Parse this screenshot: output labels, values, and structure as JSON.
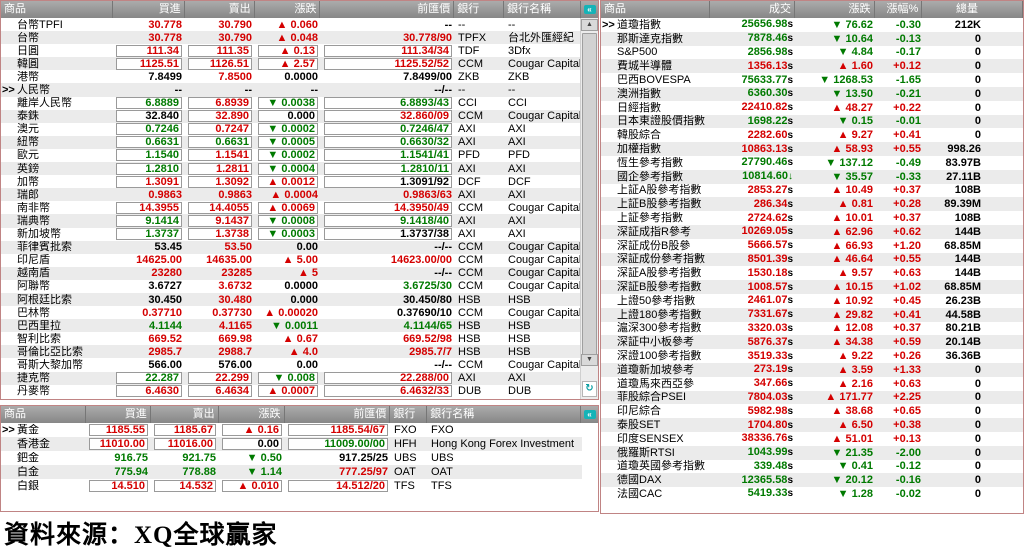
{
  "source_note": "資料來源：XQ全球贏家",
  "colors": {
    "up_red": "#d40000",
    "down_green": "#007a00",
    "flat_black": "#000000",
    "header_bg": "#979797",
    "row_alt": "#ebebeb",
    "panel_border": "#c08484",
    "link_teal": "#15b3b7"
  },
  "icons": {
    "panel_link_icon": "«",
    "scroll_up_icon": "▲",
    "scroll_down_icon": "▼",
    "refresh_icon": "↻",
    "up_arrow": "▲",
    "down_arrow": "▼"
  },
  "fx_panel": {
    "headers": {
      "product": "商品",
      "bid": "買進",
      "ask": "賣出",
      "change": "漲跌",
      "prev": "前匯價",
      "bank": "銀行",
      "bank_name": "銀行名稱"
    },
    "rows": [
      {
        "name": "台幣TPFI",
        "sel": false,
        "bid": "30.778",
        "bc": "r",
        "ask": "30.790",
        "ac": "r",
        "chg": "0.060",
        "dir": "up",
        "prev": "--",
        "pc": "k",
        "bank": "--",
        "bank_name": "--",
        "boxed": false
      },
      {
        "name": "台幣",
        "sel": false,
        "bid": "30.778",
        "bc": "r",
        "ask": "30.790",
        "ac": "r",
        "chg": "0.048",
        "dir": "up",
        "prev": "30.778/90",
        "pc": "r",
        "bank": "TPFX",
        "bank_name": "台北外匯經紀",
        "boxed": false
      },
      {
        "name": "日圓",
        "sel": false,
        "bid": "111.34",
        "bc": "r",
        "ask": "111.35",
        "ac": "r",
        "chg": "0.13",
        "dir": "up",
        "prev": "111.34/34",
        "pc": "r",
        "bank": "TDF",
        "bank_name": "3Dfx",
        "boxed": true
      },
      {
        "name": "韓圓",
        "sel": false,
        "bid": "1125.51",
        "bc": "r",
        "ask": "1126.51",
        "ac": "r",
        "chg": "2.57",
        "dir": "up",
        "prev": "1125.52/52",
        "pc": "r",
        "bank": "CCM",
        "bank_name": "Cougar Capital ...",
        "boxed": true
      },
      {
        "name": "港幣",
        "sel": false,
        "bid": "7.8499",
        "bc": "k",
        "ask": "7.8500",
        "ac": "r",
        "chg": "0.0000",
        "dir": "flat",
        "prev": "7.8499/00",
        "pc": "k",
        "bank": "ZKB",
        "bank_name": "ZKB",
        "boxed": false
      },
      {
        "name": "人民幣",
        "sel": true,
        "bid": "--",
        "bc": "k",
        "ask": "--",
        "ac": "k",
        "chg": "--",
        "dir": "flat",
        "prev": "--/--",
        "pc": "k",
        "bank": "--",
        "bank_name": "--",
        "boxed": false
      },
      {
        "name": "離岸人民幣",
        "sel": false,
        "bid": "6.8889",
        "bc": "g",
        "ask": "6.8939",
        "ac": "r",
        "chg": "0.0038",
        "dir": "down",
        "prev": "6.8893/43",
        "pc": "g",
        "bank": "CCI",
        "bank_name": "CCI",
        "boxed": true
      },
      {
        "name": "泰銖",
        "sel": false,
        "bid": "32.840",
        "bc": "k",
        "ask": "32.890",
        "ac": "r",
        "chg": "0.000",
        "dir": "flat",
        "prev": "32.860/09",
        "pc": "r",
        "bank": "CCM",
        "bank_name": "Cougar Capital ...",
        "boxed": true
      },
      {
        "name": "澳元",
        "sel": false,
        "bid": "0.7246",
        "bc": "g",
        "ask": "0.7247",
        "ac": "r",
        "chg": "0.0002",
        "dir": "down",
        "prev": "0.7246/47",
        "pc": "g",
        "bank": "AXI",
        "bank_name": "AXI",
        "boxed": true
      },
      {
        "name": "紐幣",
        "sel": false,
        "bid": "0.6631",
        "bc": "g",
        "ask": "0.6631",
        "ac": "g",
        "chg": "0.0005",
        "dir": "down",
        "prev": "0.6630/32",
        "pc": "g",
        "bank": "AXI",
        "bank_name": "AXI",
        "boxed": true
      },
      {
        "name": "歐元",
        "sel": false,
        "bid": "1.1540",
        "bc": "g",
        "ask": "1.1541",
        "ac": "r",
        "chg": "0.0002",
        "dir": "down",
        "prev": "1.1541/41",
        "pc": "g",
        "bank": "PFD",
        "bank_name": "PFD",
        "boxed": true
      },
      {
        "name": "英鎊",
        "sel": false,
        "bid": "1.2810",
        "bc": "g",
        "ask": "1.2811",
        "ac": "r",
        "chg": "0.0004",
        "dir": "down",
        "prev": "1.2810/11",
        "pc": "g",
        "bank": "AXI",
        "bank_name": "AXI",
        "boxed": true
      },
      {
        "name": "加幣",
        "sel": false,
        "bid": "1.3091",
        "bc": "r",
        "ask": "1.3092",
        "ac": "r",
        "chg": "0.0012",
        "dir": "up",
        "prev": "1.3091/92",
        "pc": "k",
        "bank": "DCF",
        "bank_name": "DCF",
        "boxed": true
      },
      {
        "name": "瑞郎",
        "sel": false,
        "bid": "0.9863",
        "bc": "r",
        "ask": "0.9863",
        "ac": "r",
        "chg": "0.0004",
        "dir": "up",
        "prev": "0.9863/63",
        "pc": "r",
        "bank": "AXI",
        "bank_name": "AXI",
        "boxed": false
      },
      {
        "name": "南非幣",
        "sel": false,
        "bid": "14.3955",
        "bc": "r",
        "ask": "14.4055",
        "ac": "r",
        "chg": "0.0069",
        "dir": "up",
        "prev": "14.3950/49",
        "pc": "r",
        "bank": "CCM",
        "bank_name": "Cougar Capital ...",
        "boxed": true
      },
      {
        "name": "瑞典幣",
        "sel": false,
        "bid": "9.1414",
        "bc": "g",
        "ask": "9.1437",
        "ac": "r",
        "chg": "0.0008",
        "dir": "down",
        "prev": "9.1418/40",
        "pc": "g",
        "bank": "AXI",
        "bank_name": "AXI",
        "boxed": true
      },
      {
        "name": "新加坡幣",
        "sel": false,
        "bid": "1.3737",
        "bc": "g",
        "ask": "1.3738",
        "ac": "r",
        "chg": "0.0003",
        "dir": "down",
        "prev": "1.3737/38",
        "pc": "k",
        "bank": "AXI",
        "bank_name": "AXI",
        "boxed": true
      },
      {
        "name": "菲律賓批索",
        "sel": false,
        "bid": "53.45",
        "bc": "k",
        "ask": "53.50",
        "ac": "r",
        "chg": "0.00",
        "dir": "flat",
        "prev": "--/--",
        "pc": "k",
        "bank": "CCM",
        "bank_name": "Cougar Capital ...",
        "boxed": false
      },
      {
        "name": "印尼盾",
        "sel": false,
        "bid": "14625.00",
        "bc": "r",
        "ask": "14635.00",
        "ac": "r",
        "chg": "5.00",
        "dir": "up",
        "prev": "14623.00/00",
        "pc": "r",
        "bank": "CCM",
        "bank_name": "Cougar Capital ...",
        "boxed": false
      },
      {
        "name": "越南盾",
        "sel": false,
        "bid": "23280",
        "bc": "r",
        "ask": "23285",
        "ac": "r",
        "chg": "5",
        "dir": "up",
        "prev": "--/--",
        "pc": "k",
        "bank": "CCM",
        "bank_name": "Cougar Capital ...",
        "boxed": false
      },
      {
        "name": "阿聯幣",
        "sel": false,
        "bid": "3.6727",
        "bc": "k",
        "ask": "3.6732",
        "ac": "r",
        "chg": "0.0000",
        "dir": "flat",
        "prev": "3.6725/30",
        "pc": "g",
        "bank": "CCM",
        "bank_name": "Cougar Capital ...",
        "boxed": false
      },
      {
        "name": "阿根廷比索",
        "sel": false,
        "bid": "30.450",
        "bc": "k",
        "ask": "30.480",
        "ac": "r",
        "chg": "0.000",
        "dir": "flat",
        "prev": "30.450/80",
        "pc": "k",
        "bank": "HSB",
        "bank_name": "HSB",
        "boxed": false
      },
      {
        "name": "巴林幣",
        "sel": false,
        "bid": "0.37710",
        "bc": "r",
        "ask": "0.37730",
        "ac": "r",
        "chg": "0.00020",
        "dir": "up",
        "prev": "0.37690/10",
        "pc": "k",
        "bank": "CCM",
        "bank_name": "Cougar Capital ...",
        "boxed": false
      },
      {
        "name": "巴西里拉",
        "sel": false,
        "bid": "4.1144",
        "bc": "g",
        "ask": "4.1165",
        "ac": "r",
        "chg": "0.0011",
        "dir": "down",
        "prev": "4.1144/65",
        "pc": "g",
        "bank": "HSB",
        "bank_name": "HSB",
        "boxed": false
      },
      {
        "name": "智利比索",
        "sel": false,
        "bid": "669.52",
        "bc": "r",
        "ask": "669.98",
        "ac": "r",
        "chg": "0.67",
        "dir": "up",
        "prev": "669.52/98",
        "pc": "r",
        "bank": "HSB",
        "bank_name": "HSB",
        "boxed": false
      },
      {
        "name": "哥倫比亞比索",
        "sel": false,
        "bid": "2985.7",
        "bc": "r",
        "ask": "2988.7",
        "ac": "r",
        "chg": "4.0",
        "dir": "up",
        "prev": "2985.7/7",
        "pc": "r",
        "bank": "HSB",
        "bank_name": "HSB",
        "boxed": false
      },
      {
        "name": "哥斯大黎加幣",
        "sel": false,
        "bid": "566.00",
        "bc": "k",
        "ask": "576.00",
        "ac": "k",
        "chg": "0.00",
        "dir": "flat",
        "prev": "--/--",
        "pc": "k",
        "bank": "CCM",
        "bank_name": "Cougar Capital ...",
        "boxed": false
      },
      {
        "name": "捷克幣",
        "sel": false,
        "bid": "22.287",
        "bc": "g",
        "ask": "22.299",
        "ac": "r",
        "chg": "0.008",
        "dir": "down",
        "prev": "22.288/00",
        "pc": "r",
        "bank": "AXI",
        "bank_name": "AXI",
        "boxed": true
      },
      {
        "name": "丹麥幣",
        "sel": false,
        "bid": "6.4630",
        "bc": "r",
        "ask": "6.4634",
        "ac": "r",
        "chg": "0.0007",
        "dir": "up",
        "prev": "6.4632/33",
        "pc": "r",
        "bank": "DUB",
        "bank_name": "DUB",
        "boxed": true
      }
    ]
  },
  "metals_panel": {
    "headers": {
      "product": "商品",
      "bid": "買進",
      "ask": "賣出",
      "change": "漲跌",
      "prev": "前匯價",
      "bank": "銀行",
      "bank_name": "銀行名稱"
    },
    "rows": [
      {
        "name": "黃金",
        "sel": true,
        "bid": "1185.55",
        "bc": "r",
        "ask": "1185.67",
        "ac": "r",
        "chg": "0.16",
        "dir": "up",
        "prev": "1185.54/67",
        "pc": "r",
        "bank": "FXO",
        "bank_name": "FXO",
        "boxed": true
      },
      {
        "name": "香港金",
        "sel": false,
        "bid": "11010.00",
        "bc": "r",
        "ask": "11016.00",
        "ac": "r",
        "chg": "0.00",
        "dir": "flat",
        "prev": "11009.00/00",
        "pc": "g",
        "bank": "HFH",
        "bank_name": "Hong Kong Forex Investment",
        "boxed": true
      },
      {
        "name": "鈀金",
        "sel": false,
        "bid": "916.75",
        "bc": "g",
        "ask": "921.75",
        "ac": "g",
        "chg": "0.50",
        "dir": "down",
        "prev": "917.25/25",
        "pc": "k",
        "bank": "UBS",
        "bank_name": "UBS",
        "boxed": false
      },
      {
        "name": "白金",
        "sel": false,
        "bid": "775.94",
        "bc": "g",
        "ask": "778.88",
        "ac": "g",
        "chg": "1.14",
        "dir": "down",
        "prev": "777.25/97",
        "pc": "r",
        "bank": "OAT",
        "bank_name": "OAT",
        "boxed": false
      },
      {
        "name": "白銀",
        "sel": false,
        "bid": "14.510",
        "bc": "r",
        "ask": "14.532",
        "ac": "r",
        "chg": "0.010",
        "dir": "up",
        "prev": "14.512/20",
        "pc": "r",
        "bank": "TFS",
        "bank_name": "TFS",
        "boxed": true
      }
    ]
  },
  "index_panel": {
    "headers": {
      "product": "商品",
      "last": "成交",
      "change": "漲跌",
      "pct": "漲幅%",
      "volume": "總量"
    },
    "rows": [
      {
        "name": "道瓊指數",
        "sel": true,
        "last": "25656.98",
        "lc": "g",
        "sfx": "s",
        "chg": "76.62",
        "dir": "down",
        "pct": "-0.30",
        "vol": "212K"
      },
      {
        "name": "那斯達克指數",
        "sel": false,
        "last": "7878.46",
        "lc": "g",
        "sfx": "s",
        "chg": "10.64",
        "dir": "down",
        "pct": "-0.13",
        "vol": "0"
      },
      {
        "name": "S&P500",
        "sel": false,
        "last": "2856.98",
        "lc": "g",
        "sfx": "s",
        "chg": "4.84",
        "dir": "down",
        "pct": "-0.17",
        "vol": "0"
      },
      {
        "name": "費城半導體",
        "sel": false,
        "last": "1356.13",
        "lc": "r",
        "sfx": "s",
        "chg": "1.60",
        "dir": "up",
        "pct": "+0.12",
        "vol": "0"
      },
      {
        "name": "巴西BOVESPA",
        "sel": false,
        "last": "75633.77",
        "lc": "g",
        "sfx": "s",
        "chg": "1268.53",
        "dir": "down",
        "pct": "-1.65",
        "vol": "0"
      },
      {
        "name": "澳洲指數",
        "sel": false,
        "last": "6360.30",
        "lc": "g",
        "sfx": "s",
        "chg": "13.50",
        "dir": "down",
        "pct": "-0.21",
        "vol": "0"
      },
      {
        "name": "日經指數",
        "sel": false,
        "last": "22410.82",
        "lc": "r",
        "sfx": "s",
        "chg": "48.27",
        "dir": "up",
        "pct": "+0.22",
        "vol": "0"
      },
      {
        "name": "日本東證股價指數",
        "sel": false,
        "last": "1698.22",
        "lc": "g",
        "sfx": "s",
        "chg": "0.15",
        "dir": "down",
        "pct": "-0.01",
        "vol": "0"
      },
      {
        "name": "韓股綜合",
        "sel": false,
        "last": "2282.60",
        "lc": "r",
        "sfx": "s",
        "chg": "9.27",
        "dir": "up",
        "pct": "+0.41",
        "vol": "0"
      },
      {
        "name": "加權指數",
        "sel": false,
        "last": "10863.13",
        "lc": "r",
        "sfx": "s",
        "chg": "58.93",
        "dir": "up",
        "pct": "+0.55",
        "vol": "998.26"
      },
      {
        "name": "恆生參考指數",
        "sel": false,
        "last": "27790.46",
        "lc": "g",
        "sfx": "s",
        "chg": "137.12",
        "dir": "down",
        "pct": "-0.49",
        "vol": "83.97B"
      },
      {
        "name": "國企參考指數",
        "sel": false,
        "last": "10814.60",
        "lc": "g",
        "sfx": "↓",
        "chg": "35.57",
        "dir": "down",
        "pct": "-0.33",
        "vol": "27.11B"
      },
      {
        "name": "上証A股參考指數",
        "sel": false,
        "last": "2853.27",
        "lc": "r",
        "sfx": "s",
        "chg": "10.49",
        "dir": "up",
        "pct": "+0.37",
        "vol": "108B"
      },
      {
        "name": "上証B股參考指數",
        "sel": false,
        "last": "286.34",
        "lc": "r",
        "sfx": "s",
        "chg": "0.81",
        "dir": "up",
        "pct": "+0.28",
        "vol": "89.39M"
      },
      {
        "name": "上証參考指數",
        "sel": false,
        "last": "2724.62",
        "lc": "r",
        "sfx": "s",
        "chg": "10.01",
        "dir": "up",
        "pct": "+0.37",
        "vol": "108B"
      },
      {
        "name": "深証成指R參考",
        "sel": false,
        "last": "10269.05",
        "lc": "r",
        "sfx": "s",
        "chg": "62.96",
        "dir": "up",
        "pct": "+0.62",
        "vol": "144B"
      },
      {
        "name": "深証成份B股參",
        "sel": false,
        "last": "5666.57",
        "lc": "r",
        "sfx": "s",
        "chg": "66.93",
        "dir": "up",
        "pct": "+1.20",
        "vol": "68.85M"
      },
      {
        "name": "深証成份參考指數",
        "sel": false,
        "last": "8501.39",
        "lc": "r",
        "sfx": "s",
        "chg": "46.64",
        "dir": "up",
        "pct": "+0.55",
        "vol": "144B"
      },
      {
        "name": "深証A股參考指數",
        "sel": false,
        "last": "1530.18",
        "lc": "r",
        "sfx": "s",
        "chg": "9.57",
        "dir": "up",
        "pct": "+0.63",
        "vol": "144B"
      },
      {
        "name": "深証B股參考指數",
        "sel": false,
        "last": "1008.57",
        "lc": "r",
        "sfx": "s",
        "chg": "10.15",
        "dir": "up",
        "pct": "+1.02",
        "vol": "68.85M"
      },
      {
        "name": "上證50參考指數",
        "sel": false,
        "last": "2461.07",
        "lc": "r",
        "sfx": "s",
        "chg": "10.92",
        "dir": "up",
        "pct": "+0.45",
        "vol": "26.23B"
      },
      {
        "name": "上證180參考指數",
        "sel": false,
        "last": "7331.67",
        "lc": "r",
        "sfx": "s",
        "chg": "29.82",
        "dir": "up",
        "pct": "+0.41",
        "vol": "44.58B"
      },
      {
        "name": "滬深300參考指數",
        "sel": false,
        "last": "3320.03",
        "lc": "r",
        "sfx": "s",
        "chg": "12.08",
        "dir": "up",
        "pct": "+0.37",
        "vol": "80.21B"
      },
      {
        "name": "深証中小板參考",
        "sel": false,
        "last": "5876.37",
        "lc": "r",
        "sfx": "s",
        "chg": "34.38",
        "dir": "up",
        "pct": "+0.59",
        "vol": "20.14B"
      },
      {
        "name": "深證100參考指數",
        "sel": false,
        "last": "3519.33",
        "lc": "r",
        "sfx": "s",
        "chg": "9.22",
        "dir": "up",
        "pct": "+0.26",
        "vol": "36.36B"
      },
      {
        "name": "道瓊新加坡參考",
        "sel": false,
        "last": "273.19",
        "lc": "r",
        "sfx": "s",
        "chg": "3.59",
        "dir": "up",
        "pct": "+1.33",
        "vol": "0"
      },
      {
        "name": "道瓊馬來西亞參",
        "sel": false,
        "last": "347.66",
        "lc": "r",
        "sfx": "s",
        "chg": "2.16",
        "dir": "up",
        "pct": "+0.63",
        "vol": "0"
      },
      {
        "name": "菲股綜合PSEI",
        "sel": false,
        "last": "7804.03",
        "lc": "r",
        "sfx": "s",
        "chg": "171.77",
        "dir": "up",
        "pct": "+2.25",
        "vol": "0"
      },
      {
        "name": "印尼綜合",
        "sel": false,
        "last": "5982.98",
        "lc": "r",
        "sfx": "s",
        "chg": "38.68",
        "dir": "up",
        "pct": "+0.65",
        "vol": "0"
      },
      {
        "name": "泰股SET",
        "sel": false,
        "last": "1704.80",
        "lc": "r",
        "sfx": "s",
        "chg": "6.50",
        "dir": "up",
        "pct": "+0.38",
        "vol": "0"
      },
      {
        "name": "印度SENSEX",
        "sel": false,
        "last": "38336.76",
        "lc": "r",
        "sfx": "s",
        "chg": "51.01",
        "dir": "up",
        "pct": "+0.13",
        "vol": "0"
      },
      {
        "name": "俄羅斯RTSI",
        "sel": false,
        "last": "1043.99",
        "lc": "g",
        "sfx": "s",
        "chg": "21.35",
        "dir": "down",
        "pct": "-2.00",
        "vol": "0"
      },
      {
        "name": "道瓊英國參考指數",
        "sel": false,
        "last": "339.48",
        "lc": "g",
        "sfx": "s",
        "chg": "0.41",
        "dir": "down",
        "pct": "-0.12",
        "vol": "0"
      },
      {
        "name": "德國DAX",
        "sel": false,
        "last": "12365.58",
        "lc": "g",
        "sfx": "s",
        "chg": "20.12",
        "dir": "down",
        "pct": "-0.16",
        "vol": "0"
      },
      {
        "name": "法國CAC",
        "sel": false,
        "last": "5419.33",
        "lc": "g",
        "sfx": "s",
        "chg": "1.28",
        "dir": "down",
        "pct": "-0.02",
        "vol": "0"
      }
    ]
  }
}
